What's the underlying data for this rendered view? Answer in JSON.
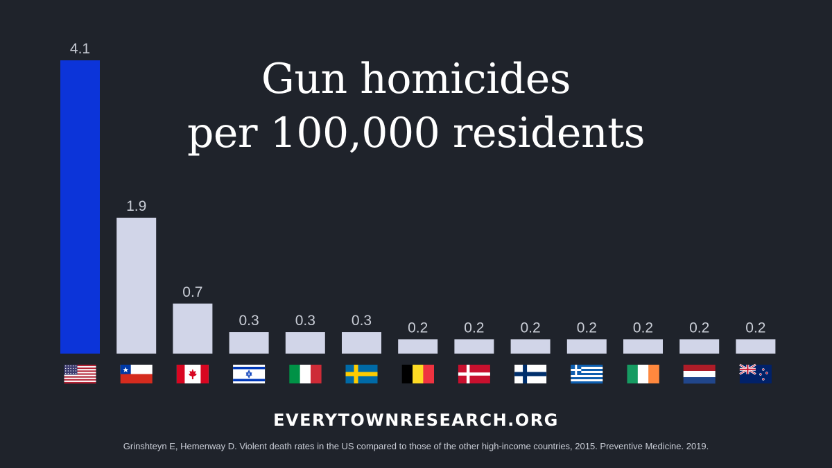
{
  "title_lines": [
    "Gun homicides",
    "per 100,000 residents"
  ],
  "website": "EVERYTOWNRESEARCH.ORG",
  "source": "Grinshteyn E, Hemenway D. Violent death rates in the US compared to those of the other high-income countries, 2015. Preventive Medicine. 2019.",
  "colors": {
    "background": "#1f232b",
    "highlight_bar": "#0c34d9",
    "bar": "#d1d5e8",
    "value_label": "#c9cdd6"
  },
  "chart_data": {
    "type": "bar",
    "title": "Gun homicides per 100,000 residents",
    "xlabel": "",
    "ylabel": "",
    "ylim": [
      0,
      4.1
    ],
    "grid": false,
    "categories": [
      "United States",
      "Chile",
      "Canada",
      "Israel",
      "Italy",
      "Sweden",
      "Belgium",
      "Denmark",
      "Finland",
      "Greece",
      "Ireland",
      "Netherlands",
      "New Zealand"
    ],
    "category_icons": [
      "us-flag-icon",
      "chile-flag-icon",
      "canada-flag-icon",
      "israel-flag-icon",
      "italy-flag-icon",
      "sweden-flag-icon",
      "belgium-flag-icon",
      "denmark-flag-icon",
      "finland-flag-icon",
      "greece-flag-icon",
      "ireland-flag-icon",
      "netherlands-flag-icon",
      "new-zealand-flag-icon"
    ],
    "values": [
      4.1,
      1.9,
      0.7,
      0.3,
      0.3,
      0.3,
      0.2,
      0.2,
      0.2,
      0.2,
      0.2,
      0.2,
      0.2
    ],
    "value_labels": [
      "4.1",
      "1.9",
      "0.7",
      "0.3",
      "0.3",
      "0.3",
      "0.2",
      "0.2",
      "0.2",
      "0.2",
      "0.2",
      "0.2",
      "0.2"
    ],
    "highlight_index": 0
  }
}
